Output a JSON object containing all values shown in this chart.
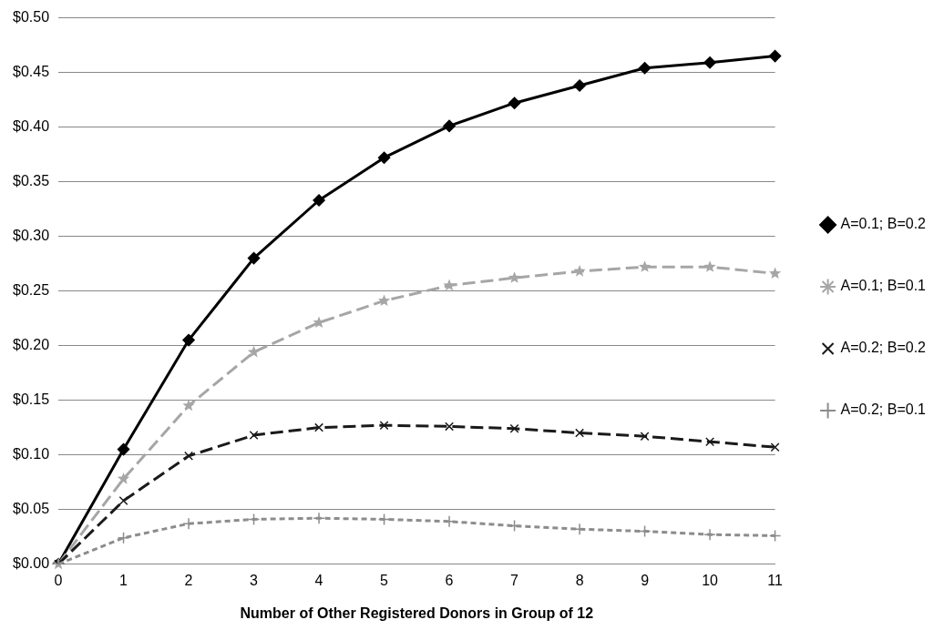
{
  "chart_data": {
    "type": "line",
    "xlabel": "Number of Other Registered Donors in Group of 12",
    "categories": [
      "0",
      "1",
      "2",
      "3",
      "4",
      "5",
      "6",
      "7",
      "8",
      "9",
      "10",
      "11"
    ],
    "series": [
      {
        "name": "A=0.1; B=0.2",
        "color": "#000000",
        "line_style": "solid",
        "marker": "diamond",
        "values": [
          0,
          0.105,
          0.205,
          0.28,
          0.333,
          0.372,
          0.401,
          0.422,
          0.438,
          0.454,
          0.459,
          0.465
        ]
      },
      {
        "name": "A=0.1; B=0.1",
        "color": "#a6a6a6",
        "line_style": "dashed",
        "marker": "star",
        "values": [
          0,
          0.078,
          0.145,
          0.194,
          0.221,
          0.241,
          0.255,
          0.262,
          0.268,
          0.272,
          0.272,
          0.266
        ]
      },
      {
        "name": "A=0.2; B=0.2",
        "color": "#1a1a1a",
        "line_style": "dashed",
        "marker": "cross",
        "values": [
          0,
          0.058,
          0.099,
          0.118,
          0.125,
          0.127,
          0.126,
          0.124,
          0.12,
          0.117,
          0.112,
          0.107
        ]
      },
      {
        "name": "A=0.2; B=0.1",
        "color": "#8c8c8c",
        "line_style": "dotted",
        "marker": "plus",
        "values": [
          0,
          0.024,
          0.037,
          0.041,
          0.042,
          0.041,
          0.039,
          0.035,
          0.032,
          0.03,
          0.027,
          0.026
        ]
      }
    ],
    "ylim": [
      0,
      0.5
    ],
    "yticks": [
      {
        "value": 0,
        "label": "$0.00"
      },
      {
        "value": 0.05,
        "label": "$0.05"
      },
      {
        "value": 0.1,
        "label": "$0.10"
      },
      {
        "value": 0.15,
        "label": "$0.15"
      },
      {
        "value": 0.2,
        "label": "$0.20"
      },
      {
        "value": 0.25,
        "label": "$0.25"
      },
      {
        "value": 0.3,
        "label": "$0.30"
      },
      {
        "value": 0.35,
        "label": "$0.35"
      },
      {
        "value": 0.4,
        "label": "$0.40"
      },
      {
        "value": 0.45,
        "label": "$0.45"
      },
      {
        "value": 0.5,
        "label": "$0.50"
      }
    ],
    "grid": "y",
    "legend": "right"
  }
}
